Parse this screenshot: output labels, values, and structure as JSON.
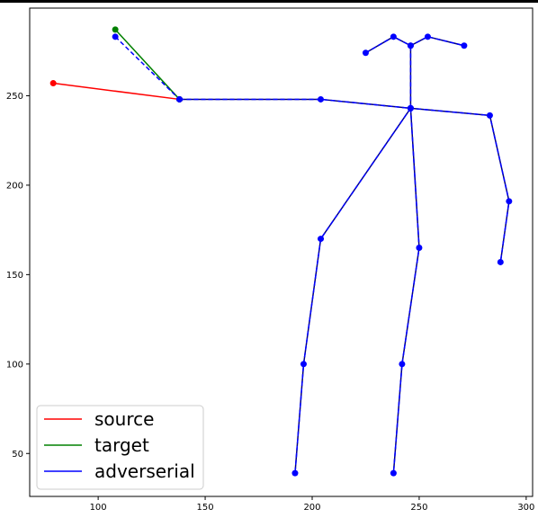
{
  "chart_data": {
    "type": "line",
    "title": "",
    "xlabel": "",
    "ylabel": "",
    "xlim": [
      68,
      303
    ],
    "ylim": [
      26,
      299
    ],
    "xticks": [
      100,
      150,
      200,
      250,
      300
    ],
    "yticks": [
      50,
      100,
      150,
      200,
      250
    ],
    "grid": false,
    "legend": {
      "placement": "lower-left",
      "entries": [
        {
          "label": "source",
          "color": "#ff0000"
        },
        {
          "label": "target",
          "color": "#008000"
        },
        {
          "label": "adverserial",
          "color": "#0000ff"
        }
      ]
    },
    "series": [
      {
        "name": "source",
        "color": "#ff0000",
        "style": "solid",
        "markers": true,
        "segments": [
          [
            [
              79,
              257
            ],
            [
              138,
              248
            ]
          ]
        ]
      },
      {
        "name": "target",
        "color": "#008000",
        "style": "solid",
        "markers": true,
        "segments": [
          [
            [
              108,
              287
            ],
            [
              138,
              248
            ]
          ]
        ]
      },
      {
        "name": "adverserial",
        "color": "#0000ff",
        "style": "dashed",
        "markers": true,
        "segments": [
          [
            [
              108,
              283
            ],
            [
              138,
              248
            ]
          ],
          [
            [
              138,
              248
            ],
            [
              204,
              248
            ],
            [
              246,
              243
            ],
            [
              283,
              239
            ],
            [
              292,
              191
            ],
            [
              288,
              157
            ]
          ],
          [
            [
              246,
              243
            ],
            [
              246,
              278
            ]
          ],
          [
            [
              225,
              274
            ],
            [
              238,
              283
            ],
            [
              246,
              278
            ],
            [
              254,
              283
            ],
            [
              271,
              278
            ]
          ],
          [
            [
              246,
              243
            ],
            [
              204,
              170
            ],
            [
              196,
              100
            ],
            [
              192,
              39
            ]
          ],
          [
            [
              246,
              243
            ],
            [
              250,
              165
            ],
            [
              242,
              100
            ],
            [
              238,
              39
            ]
          ]
        ]
      },
      {
        "name": "",
        "color": "#000080",
        "style": "solid",
        "markers": false,
        "segments": [
          [
            [
              138,
              248
            ],
            [
              204,
              248
            ],
            [
              246,
              243
            ],
            [
              283,
              239
            ],
            [
              292,
              191
            ],
            [
              288,
              157
            ]
          ],
          [
            [
              246,
              243
            ],
            [
              246,
              278
            ]
          ],
          [
            [
              225,
              274
            ],
            [
              238,
              283
            ],
            [
              246,
              278
            ],
            [
              254,
              283
            ],
            [
              271,
              278
            ]
          ],
          [
            [
              246,
              243
            ],
            [
              204,
              170
            ],
            [
              196,
              100
            ],
            [
              192,
              39
            ]
          ],
          [
            [
              246,
              243
            ],
            [
              250,
              165
            ],
            [
              242,
              100
            ],
            [
              238,
              39
            ]
          ]
        ]
      }
    ]
  }
}
